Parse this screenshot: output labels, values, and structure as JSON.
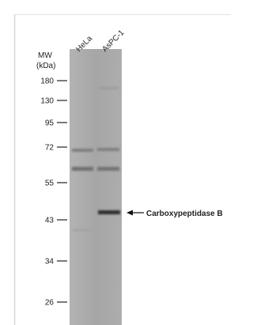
{
  "lanes": [
    "HeLa",
    "AsPC-1"
  ],
  "mw_label": "MW",
  "mw_unit": "(kDa)",
  "markers": [
    180,
    130,
    95,
    72,
    55,
    43,
    34,
    26
  ],
  "band_label": "Carboxypeptidase B"
}
